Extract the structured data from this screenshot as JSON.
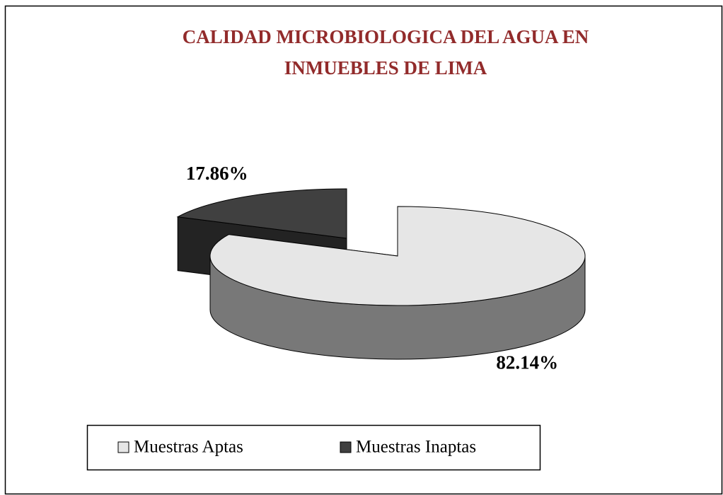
{
  "chart_data": {
    "type": "pie",
    "title": "CALIDAD MICROBIOLOGICA DEL AGUA EN INMUEBLES DE LIMA",
    "categories": [
      "Muestras Aptas",
      "Muestras Inaptas"
    ],
    "values": [
      82.14,
      17.86
    ],
    "value_labels": [
      "82.14%",
      "17.86%"
    ],
    "colors": [
      "#e6e6e6",
      "#404040"
    ],
    "explode": [
      false,
      true
    ],
    "legend": "bottom"
  }
}
